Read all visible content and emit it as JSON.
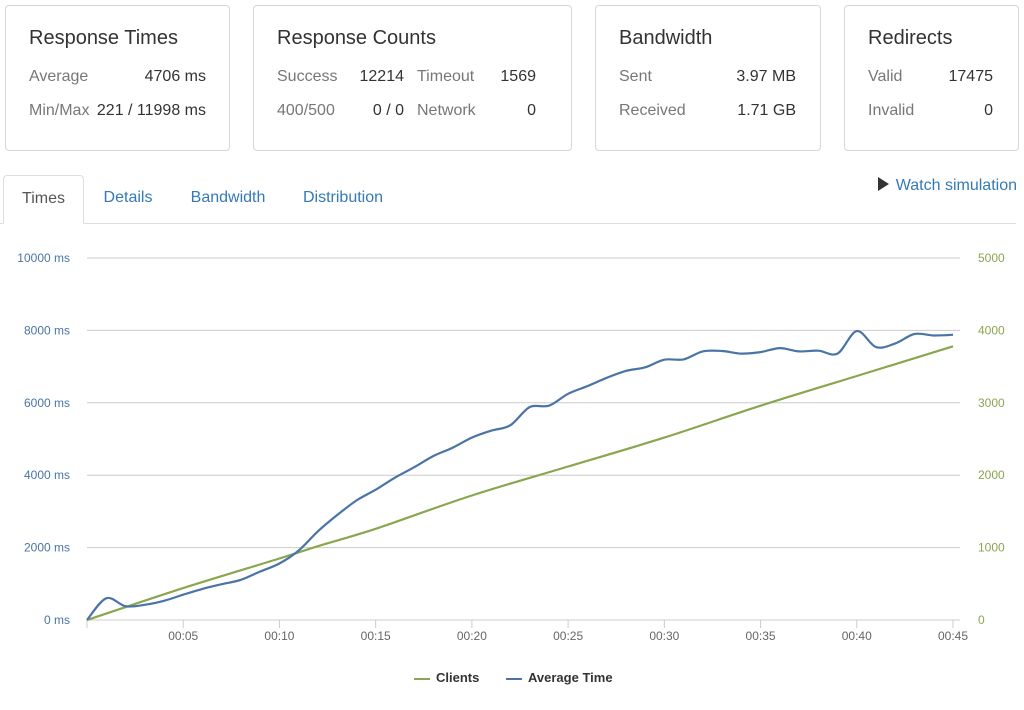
{
  "cards": {
    "response_times": {
      "title": "Response Times",
      "average_label": "Average",
      "average_value": "4706 ms",
      "minmax_label": "Min/Max",
      "minmax_value": "221 / 11998 ms"
    },
    "response_counts": {
      "title": "Response Counts",
      "success_label": "Success",
      "success_value": "12214",
      "timeout_label": "Timeout",
      "timeout_value": "1569",
      "http_label": "400/500",
      "http_value": "0 / 0",
      "network_label": "Network",
      "network_value": "0"
    },
    "bandwidth": {
      "title": "Bandwidth",
      "sent_label": "Sent",
      "sent_value": "3.97 MB",
      "received_label": "Received",
      "received_value": "1.71 GB"
    },
    "redirects": {
      "title": "Redirects",
      "valid_label": "Valid",
      "valid_value": "17475",
      "invalid_label": "Invalid",
      "invalid_value": "0"
    }
  },
  "tabs": [
    {
      "label": "Times",
      "active": true
    },
    {
      "label": "Details",
      "active": false
    },
    {
      "label": "Bandwidth",
      "active": false
    },
    {
      "label": "Distribution",
      "active": false
    }
  ],
  "watch_simulation": {
    "label": "Watch simulation",
    "icon": "play-icon"
  },
  "colors": {
    "clients": "#8aa64f",
    "average_time": "#4a74a5",
    "grid": "#cccccc",
    "left_axis": "#4a74a5",
    "right_axis": "#8aa64f"
  },
  "chart_data": {
    "type": "line",
    "xlim": [
      0,
      45
    ],
    "x_ticks": [
      "00:05",
      "00:10",
      "00:15",
      "00:20",
      "00:25",
      "00:30",
      "00:35",
      "00:40",
      "00:45"
    ],
    "x_tick_values": [
      5,
      10,
      15,
      20,
      25,
      30,
      35,
      40,
      45
    ],
    "left_axis": {
      "ylim": [
        0,
        10000
      ],
      "ticks": [
        "0 ms",
        "2000 ms",
        "4000 ms",
        "6000 ms",
        "8000 ms",
        "10000 ms"
      ],
      "tick_values": [
        0,
        2000,
        4000,
        6000,
        8000,
        10000
      ]
    },
    "right_axis": {
      "ylim": [
        0,
        5000
      ],
      "ticks": [
        "0",
        "1000",
        "2000",
        "3000",
        "4000",
        "5000"
      ],
      "tick_values": [
        0,
        1000,
        2000,
        3000,
        4000,
        5000
      ]
    },
    "grid": true,
    "legend_position": "bottom-center",
    "series": [
      {
        "name": "Clients",
        "axis": "right",
        "x": [
          0,
          5,
          10,
          12,
          15,
          20,
          25,
          30,
          35,
          40,
          45
        ],
        "values": [
          0,
          440,
          850,
          1020,
          1260,
          1720,
          2120,
          2520,
          2960,
          3370,
          3780
        ]
      },
      {
        "name": "Average Time",
        "axis": "left",
        "x": [
          0,
          1,
          2,
          3,
          4,
          5,
          6,
          7,
          8,
          9,
          10,
          11,
          12,
          13,
          14,
          15,
          16,
          17,
          18,
          19,
          20,
          21,
          22,
          23,
          24,
          25,
          26,
          27,
          28,
          29,
          30,
          31,
          32,
          33,
          34,
          35,
          36,
          37,
          38,
          39,
          40,
          41,
          42,
          43,
          44,
          45
        ],
        "values": [
          0,
          600,
          380,
          420,
          530,
          700,
          860,
          990,
          1110,
          1340,
          1560,
          1920,
          2450,
          2900,
          3300,
          3600,
          3930,
          4220,
          4530,
          4760,
          5040,
          5230,
          5380,
          5880,
          5920,
          6250,
          6460,
          6690,
          6880,
          6980,
          7190,
          7200,
          7420,
          7430,
          7360,
          7400,
          7510,
          7420,
          7440,
          7360,
          7980,
          7540,
          7640,
          7900,
          7860,
          7880
        ]
      }
    ]
  }
}
